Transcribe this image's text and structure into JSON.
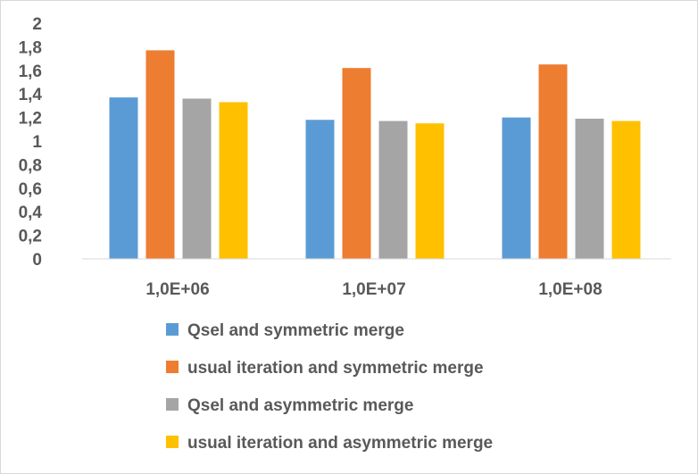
{
  "chart_data": {
    "type": "bar",
    "title": "",
    "xlabel": "",
    "ylabel": "",
    "ylim": [
      0,
      2
    ],
    "yticks": [
      0,
      0.2,
      0.4,
      0.6,
      0.8,
      1,
      1.2,
      1.4,
      1.6,
      1.8,
      2
    ],
    "ytick_labels": [
      "0",
      "0,2",
      "0,4",
      "0,6",
      "0,8",
      "1",
      "1,2",
      "1,4",
      "1,6",
      "1,8",
      "2"
    ],
    "categories": [
      "1,0E+06",
      "1,0E+07",
      "1,0E+08"
    ],
    "grid": false,
    "legend_position": "bottom",
    "series": [
      {
        "name": "Qsel and symmetric merge",
        "color": "#5b9bd5",
        "values": [
          1.37,
          1.18,
          1.2
        ]
      },
      {
        "name": "usual iteration and symmetric merge",
        "color": "#ed7d31",
        "values": [
          1.77,
          1.62,
          1.65
        ]
      },
      {
        "name": "Qsel and asymmetric merge",
        "color": "#a5a5a5",
        "values": [
          1.36,
          1.17,
          1.19
        ]
      },
      {
        "name": "usual iteration and asymmetric merge",
        "color": "#ffc000",
        "values": [
          1.33,
          1.15,
          1.17
        ]
      }
    ]
  }
}
